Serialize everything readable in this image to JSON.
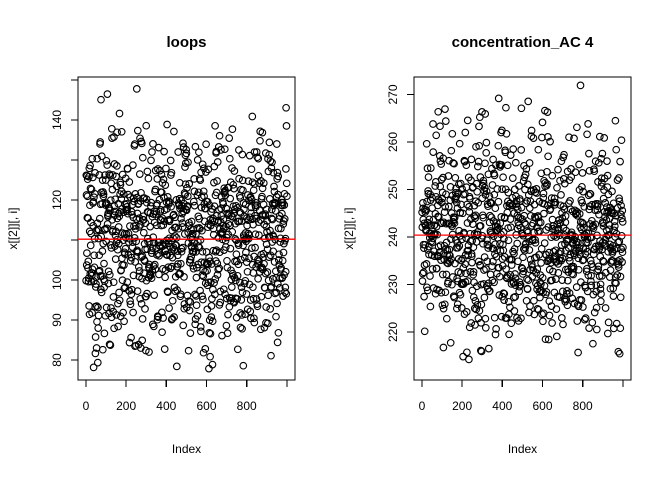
{
  "figure": {
    "background": "#ffffff",
    "foreground": "#000000"
  },
  "chart_data": [
    {
      "type": "scatter",
      "title": "loops",
      "xlabel": "Index",
      "ylabel": "x[[2]][, i]",
      "xlim": [
        -39.4,
        1040.4
      ],
      "ylim": [
        75,
        150.75
      ],
      "x_ticks": [
        0,
        200,
        400,
        600,
        800,
        1000
      ],
      "x_tick_labels": [
        "0",
        "200",
        "400",
        "600",
        "800",
        ""
      ],
      "y_ticks": [
        150,
        140,
        130,
        120,
        110,
        100,
        90,
        80
      ],
      "y_tick_labels": [
        "",
        "140",
        "",
        "120",
        "",
        "100",
        "90",
        "80"
      ],
      "grid": false,
      "point_style": {
        "shape": "open-circle",
        "color": "#000000"
      },
      "mean_line": {
        "value": 110.2,
        "color": "#ff0000"
      },
      "points": {
        "n": 1000,
        "x_first": 1,
        "x_last": 1000,
        "distribution": "normal",
        "mean": 110.3,
        "sd": 12.5,
        "min": 77.8,
        "max": 148.9,
        "seed": 1234
      }
    },
    {
      "type": "scatter",
      "title": "concentration_AC 4",
      "xlabel": "Index",
      "ylabel": "x[[2]][, i]",
      "xlim": [
        -39.4,
        1040.4
      ],
      "ylim": [
        209.9,
        273.68
      ],
      "x_ticks": [
        0,
        200,
        400,
        600,
        800,
        1000
      ],
      "x_tick_labels": [
        "0",
        "200",
        "400",
        "600",
        "800",
        ""
      ],
      "y_ticks": [
        270,
        260,
        250,
        240,
        230,
        220
      ],
      "y_tick_labels": [
        "270",
        "260",
        "250",
        "240",
        "230",
        "220"
      ],
      "grid": false,
      "point_style": {
        "shape": "open-circle",
        "color": "#000000"
      },
      "mean_line": {
        "value": 240.4,
        "color": "#ff0000"
      },
      "points": {
        "n": 1000,
        "x_first": 1,
        "x_last": 1000,
        "distribution": "normal",
        "mean": 240.4,
        "sd": 10.3,
        "min": 213.2,
        "max": 272.6,
        "seed": 5678
      }
    }
  ]
}
